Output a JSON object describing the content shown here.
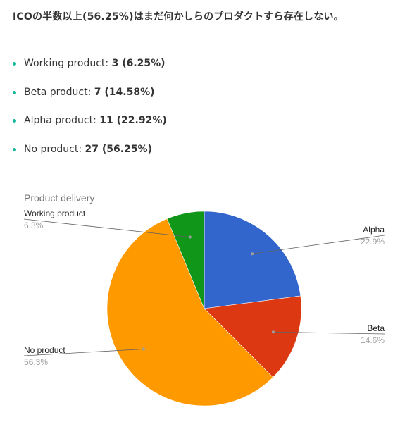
{
  "page": {
    "heading": "ICOの半数以上(56.25%)はまだ何かしらのプロダクトすら存在しない。"
  },
  "stats": [
    {
      "label": "Working product:",
      "value": "3 (6.25%)"
    },
    {
      "label": "Beta product:",
      "value": "7 (14.58%)"
    },
    {
      "label": "Alpha product:",
      "value": "11 (22.92%)"
    },
    {
      "label": "No product:",
      "value": "27 (56.25%)"
    }
  ],
  "colors": {
    "bullet": "#14b89a",
    "alpha": "#3366cc",
    "beta": "#dc3912",
    "no_product": "#ff9900",
    "working": "#109618"
  },
  "chart_data": {
    "type": "pie",
    "title": "Product delivery",
    "start_angle_deg": 0,
    "direction": "clockwise",
    "slices": [
      {
        "name": "Alpha",
        "value": 11,
        "percent_label": "22.9%",
        "color": "#3366cc"
      },
      {
        "name": "Beta",
        "value": 7,
        "percent_label": "14.6%",
        "color": "#dc3912"
      },
      {
        "name": "No product",
        "value": 27,
        "percent_label": "56.3%",
        "color": "#ff9900"
      },
      {
        "name": "Working product",
        "value": 3,
        "percent_label": "6.3%",
        "color": "#109618"
      }
    ],
    "legend": "labeled"
  }
}
